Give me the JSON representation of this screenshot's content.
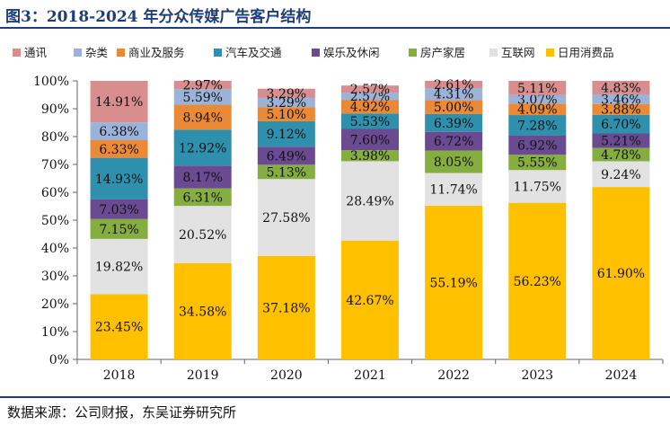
{
  "title": "图3：2018-2024 年分众传媒广告客户结构",
  "source": "数据来源：公司财报，东吴证券研究所",
  "chart_data": {
    "type": "bar",
    "stacked": true,
    "categories": [
      "2018",
      "2019",
      "2020",
      "2021",
      "2022",
      "2023",
      "2024"
    ],
    "ylim": [
      0,
      100
    ],
    "yticks": [
      "0%",
      "10%",
      "20%",
      "30%",
      "40%",
      "50%",
      "60%",
      "70%",
      "80%",
      "90%",
      "100%"
    ],
    "legend_position": "top",
    "series": [
      {
        "name": "日用消费品",
        "color": "#ffc000",
        "values": [
          23.45,
          34.58,
          37.18,
          42.67,
          55.19,
          56.23,
          61.9
        ]
      },
      {
        "name": "互联网",
        "color": "#e2e2e2",
        "values": [
          19.82,
          20.52,
          27.58,
          28.49,
          11.74,
          11.75,
          9.24
        ]
      },
      {
        "name": "房产家居",
        "color": "#86ad3f",
        "values": [
          7.15,
          6.31,
          5.13,
          3.98,
          8.05,
          5.55,
          4.78
        ]
      },
      {
        "name": "娱乐及休闲",
        "color": "#6a4a91",
        "values": [
          7.03,
          8.17,
          6.49,
          7.6,
          6.72,
          6.92,
          5.21
        ]
      },
      {
        "name": "汽车及交通",
        "color": "#2e90ac",
        "values": [
          14.93,
          12.92,
          9.12,
          5.53,
          6.39,
          7.28,
          6.7
        ]
      },
      {
        "name": "商业及服务",
        "color": "#ea8a36",
        "values": [
          6.33,
          8.94,
          5.1,
          4.92,
          5.0,
          4.09,
          3.88
        ]
      },
      {
        "name": "杂类",
        "color": "#9cb3d9",
        "values": [
          6.38,
          5.59,
          3.29,
          2.57,
          4.31,
          3.07,
          3.46
        ]
      },
      {
        "name": "通讯",
        "color": "#d88e8e",
        "values": [
          14.91,
          2.97,
          3.29,
          2.57,
          2.61,
          5.11,
          4.83
        ]
      }
    ]
  }
}
